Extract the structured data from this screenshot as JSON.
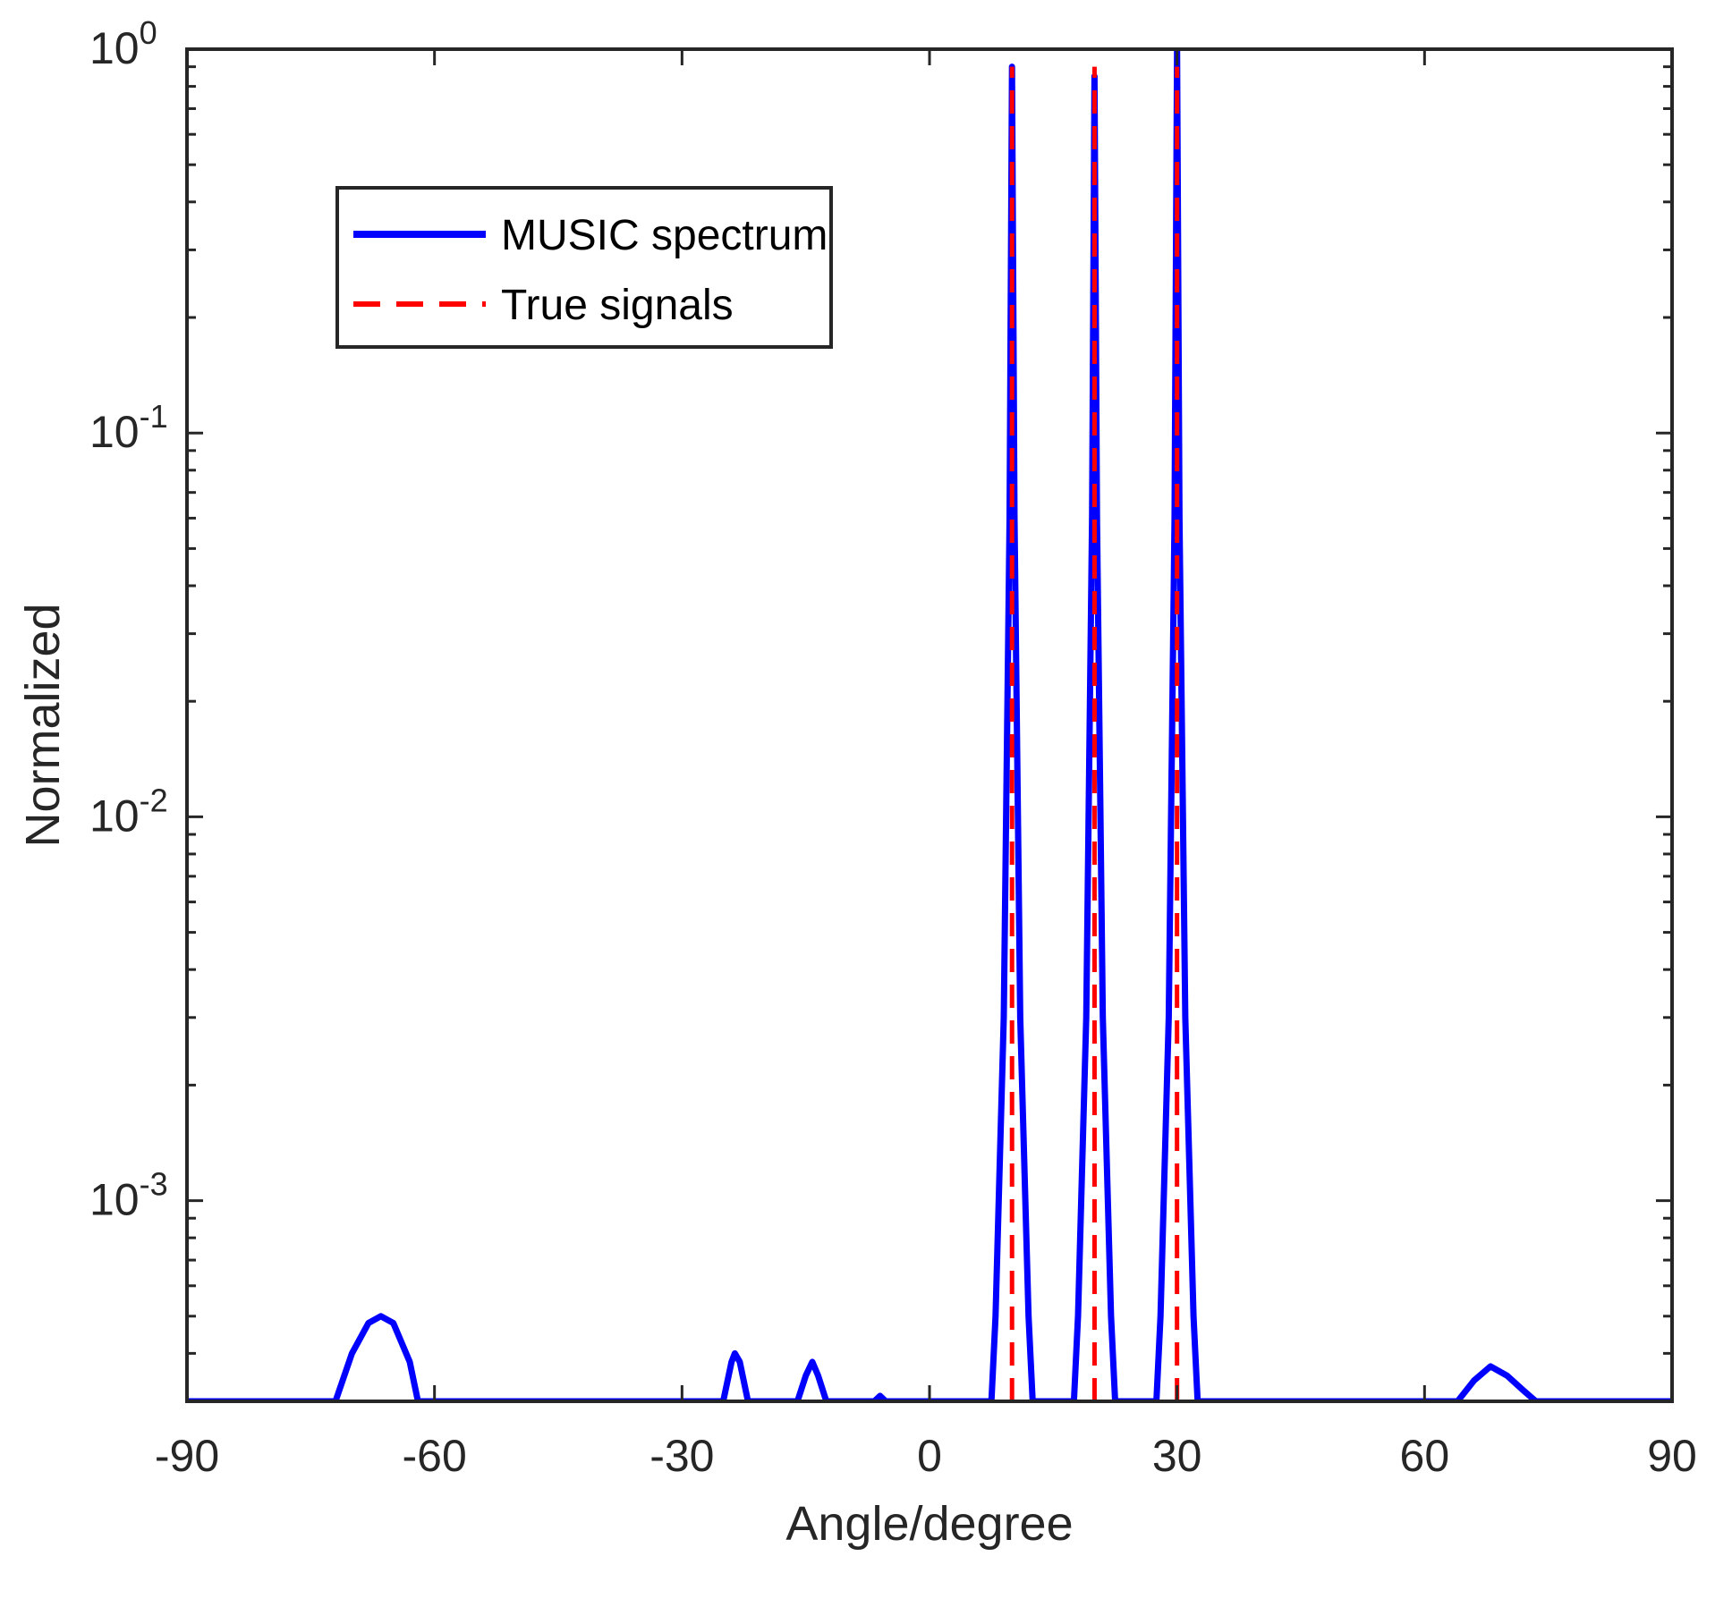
{
  "chart_data": {
    "type": "line",
    "title": "",
    "xlabel": "Angle/degree",
    "ylabel": "Normalized",
    "xlim": [
      -90,
      90
    ],
    "ylim": [
      0.0003,
      1
    ],
    "yscale": "log",
    "xticks": [
      -90,
      -60,
      -30,
      0,
      30,
      60,
      90
    ],
    "xtick_labels": [
      "-90",
      "-60",
      "-30",
      "0",
      "30",
      "60",
      "90"
    ],
    "yticks": [
      {
        "value": 1,
        "base": "10",
        "exp": "0"
      },
      {
        "value": 0.1,
        "base": "10",
        "exp": "-1"
      },
      {
        "value": 0.01,
        "base": "10",
        "exp": "-2"
      },
      {
        "value": 0.001,
        "base": "10",
        "exp": "-3"
      }
    ],
    "grid": false,
    "legend_position": "top-left",
    "series": [
      {
        "name": "MUSIC spectrum",
        "color": "#0000ff",
        "style": "solid",
        "x": [
          -90,
          -72,
          -70,
          -68,
          -66.5,
          -65,
          -63,
          -62,
          -25,
          -24,
          -23.6,
          -23,
          -22,
          -16,
          -15,
          -14.2,
          -13.5,
          -12.5,
          -6.7,
          -6,
          -5.3,
          7.5,
          8,
          9,
          9.7,
          10,
          10.3,
          11,
          12,
          12.5,
          17.5,
          18,
          19,
          19.7,
          20,
          20.3,
          21,
          22,
          22.5,
          27.5,
          28,
          29,
          29.7,
          30,
          30.3,
          31,
          32,
          32.5,
          64,
          66,
          68,
          70,
          72,
          73.5,
          90
        ],
        "y": [
          0.0003,
          0.0003,
          0.0004,
          0.00048,
          0.0005,
          0.00048,
          0.00038,
          0.0003,
          0.0003,
          0.00038,
          0.0004,
          0.00038,
          0.0003,
          0.0003,
          0.00035,
          0.00038,
          0.00035,
          0.0003,
          0.0003,
          0.00031,
          0.0003,
          0.0003,
          0.0005,
          0.003,
          0.06,
          0.9,
          0.06,
          0.003,
          0.0005,
          0.0003,
          0.0003,
          0.0005,
          0.003,
          0.06,
          0.85,
          0.06,
          0.003,
          0.0005,
          0.0003,
          0.0003,
          0.0005,
          0.003,
          0.06,
          1.0,
          0.06,
          0.003,
          0.0005,
          0.0003,
          0.0003,
          0.00034,
          0.00037,
          0.00035,
          0.00032,
          0.0003,
          0.0003
        ]
      },
      {
        "name": "True signals",
        "color": "#ff0000",
        "style": "dashed",
        "x": [
          10,
          20,
          30
        ],
        "y": [
          0.9,
          0.9,
          0.9
        ]
      }
    ]
  }
}
